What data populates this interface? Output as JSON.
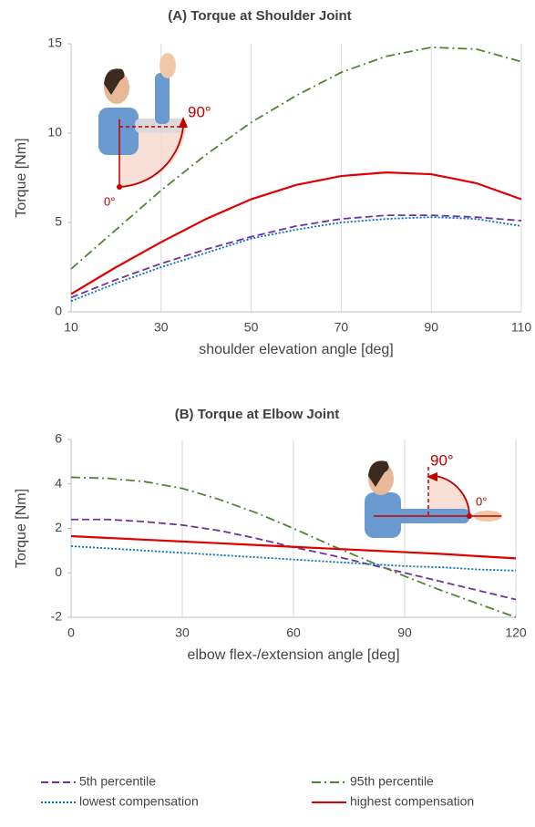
{
  "chart_data": [
    {
      "type": "line",
      "title": "(A)    Torque at Shoulder Joint",
      "x_label": "shoulder elevation angle [deg]",
      "y_label": "Torque [Nm]",
      "x": [
        10,
        20,
        30,
        40,
        50,
        60,
        70,
        80,
        90,
        100,
        110
      ],
      "xlim": [
        10,
        110
      ],
      "xticks": [
        10,
        30,
        50,
        70,
        90,
        110
      ],
      "ylim": [
        0,
        15
      ],
      "yticks": [
        0,
        5,
        10,
        15
      ],
      "grid": "x",
      "annotations": [
        "90°",
        "0°"
      ],
      "series": [
        {
          "name": "5th percentile",
          "color": "#7030a0",
          "style": "dashed",
          "values": [
            0.8,
            1.8,
            2.7,
            3.5,
            4.2,
            4.8,
            5.2,
            5.4,
            5.4,
            5.3,
            5.1
          ]
        },
        {
          "name": "95th percentile",
          "color": "#548235",
          "style": "dashdot",
          "values": [
            2.4,
            4.6,
            6.8,
            8.8,
            10.6,
            12.1,
            13.4,
            14.3,
            14.8,
            14.7,
            14.0
          ]
        },
        {
          "name": "lowest compensation",
          "color": "#0070c0",
          "style": "dotted",
          "values": [
            0.6,
            1.6,
            2.5,
            3.3,
            4.1,
            4.6,
            5.0,
            5.2,
            5.3,
            5.2,
            4.8
          ]
        },
        {
          "name": "highest compensation",
          "color": "#e00000",
          "style": "solid",
          "values": [
            1.0,
            2.5,
            3.9,
            5.2,
            6.3,
            7.1,
            7.6,
            7.8,
            7.7,
            7.2,
            6.3
          ]
        }
      ]
    },
    {
      "type": "line",
      "title": "(B)    Torque at Elbow Joint",
      "x_label": "elbow flex-/extension angle [deg]",
      "y_label": "Torque [Nm]",
      "x": [
        0,
        10,
        20,
        30,
        40,
        50,
        60,
        70,
        80,
        90,
        100,
        110,
        120
      ],
      "xlim": [
        0,
        120
      ],
      "xticks": [
        0,
        30,
        60,
        90,
        120
      ],
      "ylim": [
        -2,
        6
      ],
      "yticks": [
        -2,
        0,
        2,
        4,
        6
      ],
      "grid": "x",
      "annotations": [
        "90°",
        "0°"
      ],
      "series": [
        {
          "color": "#7030a0",
          "style": "dashed",
          "values": [
            2.4,
            2.4,
            2.3,
            2.15,
            1.9,
            1.55,
            1.15,
            0.8,
            0.4,
            0.0,
            -0.4,
            -0.8,
            -1.2
          ]
        },
        {
          "color": "#548235",
          "style": "dashdot",
          "values": [
            4.3,
            4.25,
            4.1,
            3.8,
            3.3,
            2.7,
            2.0,
            1.25,
            0.55,
            -0.15,
            -0.8,
            -1.4,
            -2.0
          ]
        },
        {
          "color": "#0070c0",
          "style": "dotted",
          "values": [
            1.2,
            1.1,
            1.0,
            0.9,
            0.8,
            0.7,
            0.6,
            0.5,
            0.4,
            0.3,
            0.25,
            0.15,
            0.1
          ]
        },
        {
          "color": "#e00000",
          "style": "solid",
          "values": [
            1.65,
            1.57,
            1.49,
            1.41,
            1.33,
            1.25,
            1.17,
            1.09,
            1.01,
            0.93,
            0.85,
            0.75,
            0.65
          ]
        }
      ]
    }
  ]
}
